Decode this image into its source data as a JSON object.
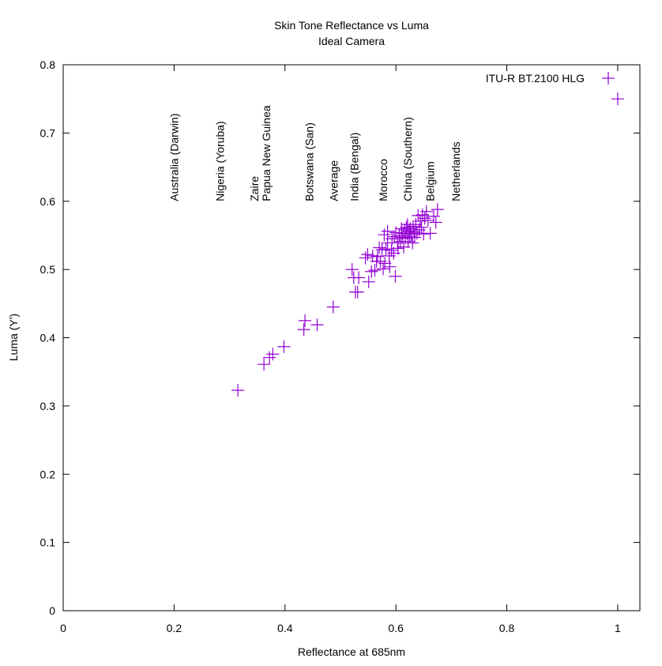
{
  "chart_data": {
    "type": "scatter",
    "title": "Skin Tone Reflectance vs Luma",
    "subtitle": "Ideal Camera",
    "xlabel": "Reflectance at 685nm",
    "ylabel": "Luma (Y')",
    "xlim": [
      0,
      1.04
    ],
    "ylim": [
      0,
      0.8
    ],
    "xticks": [
      "0",
      "0.2",
      "0.4",
      "0.6",
      "0.8",
      "1"
    ],
    "yticks": [
      "0",
      "0.1",
      "0.2",
      "0.3",
      "0.4",
      "0.5",
      "0.6",
      "0.7",
      "0.8"
    ],
    "grid": false,
    "legend_position": "top-right",
    "marker": "plus",
    "series_color": "#9400d3",
    "annotations": [
      {
        "text": "Australia (Darwin)",
        "x": 0.2
      },
      {
        "text": "Nigeria (Yoruba)",
        "x": 0.283
      },
      {
        "text": "Zaire",
        "x": 0.345
      },
      {
        "text": "Papua New Guinea",
        "x": 0.366
      },
      {
        "text": "Botswana (San)",
        "x": 0.444
      },
      {
        "text": "Average",
        "x": 0.488
      },
      {
        "text": "India (Bengal)",
        "x": 0.525
      },
      {
        "text": "Morocco",
        "x": 0.577
      },
      {
        "text": "China (Southern)",
        "x": 0.621
      },
      {
        "text": "Belgium",
        "x": 0.662
      },
      {
        "text": "Netherlands",
        "x": 0.708
      }
    ],
    "series": [
      {
        "name": "ITU-R BT.2100 HLG",
        "points": [
          [
            0.315,
            0.323
          ],
          [
            0.362,
            0.361
          ],
          [
            0.372,
            0.371
          ],
          [
            0.378,
            0.376
          ],
          [
            0.398,
            0.387
          ],
          [
            0.434,
            0.412
          ],
          [
            0.436,
            0.425
          ],
          [
            0.458,
            0.419
          ],
          [
            0.487,
            0.445
          ],
          [
            0.521,
            0.5
          ],
          [
            0.524,
            0.488
          ],
          [
            0.527,
            0.467
          ],
          [
            0.531,
            0.467
          ],
          [
            0.533,
            0.488
          ],
          [
            0.545,
            0.517
          ],
          [
            0.549,
            0.522
          ],
          [
            0.551,
            0.482
          ],
          [
            0.556,
            0.497
          ],
          [
            0.558,
            0.52
          ],
          [
            0.562,
            0.499
          ],
          [
            0.565,
            0.512
          ],
          [
            0.567,
            0.519
          ],
          [
            0.57,
            0.532
          ],
          [
            0.572,
            0.512
          ],
          [
            0.575,
            0.529
          ],
          [
            0.577,
            0.501
          ],
          [
            0.579,
            0.551
          ],
          [
            0.58,
            0.509
          ],
          [
            0.582,
            0.53
          ],
          [
            0.585,
            0.539
          ],
          [
            0.585,
            0.556
          ],
          [
            0.588,
            0.52
          ],
          [
            0.589,
            0.504
          ],
          [
            0.592,
            0.528
          ],
          [
            0.593,
            0.545
          ],
          [
            0.596,
            0.524
          ],
          [
            0.597,
            0.548
          ],
          [
            0.599,
            0.49
          ],
          [
            0.6,
            0.554
          ],
          [
            0.603,
            0.539
          ],
          [
            0.604,
            0.531
          ],
          [
            0.606,
            0.55
          ],
          [
            0.608,
            0.541
          ],
          [
            0.61,
            0.56
          ],
          [
            0.611,
            0.547
          ],
          [
            0.613,
            0.553
          ],
          [
            0.614,
            0.533
          ],
          [
            0.616,
            0.558
          ],
          [
            0.617,
            0.546
          ],
          [
            0.619,
            0.562
          ],
          [
            0.62,
            0.553
          ],
          [
            0.621,
            0.566
          ],
          [
            0.622,
            0.541
          ],
          [
            0.624,
            0.556
          ],
          [
            0.625,
            0.548
          ],
          [
            0.626,
            0.56
          ],
          [
            0.628,
            0.551
          ],
          [
            0.63,
            0.539
          ],
          [
            0.631,
            0.563
          ],
          [
            0.633,
            0.555
          ],
          [
            0.634,
            0.547
          ],
          [
            0.636,
            0.566
          ],
          [
            0.638,
            0.553
          ],
          [
            0.64,
            0.579
          ],
          [
            0.642,
            0.558
          ],
          [
            0.644,
            0.571
          ],
          [
            0.646,
            0.562
          ],
          [
            0.648,
            0.58
          ],
          [
            0.65,
            0.552
          ],
          [
            0.652,
            0.575
          ],
          [
            0.655,
            0.585
          ],
          [
            0.658,
            0.572
          ],
          [
            0.662,
            0.553
          ],
          [
            0.668,
            0.578
          ],
          [
            0.672,
            0.569
          ],
          [
            0.675,
            0.588
          ],
          [
            1.0,
            0.75
          ]
        ]
      }
    ]
  }
}
